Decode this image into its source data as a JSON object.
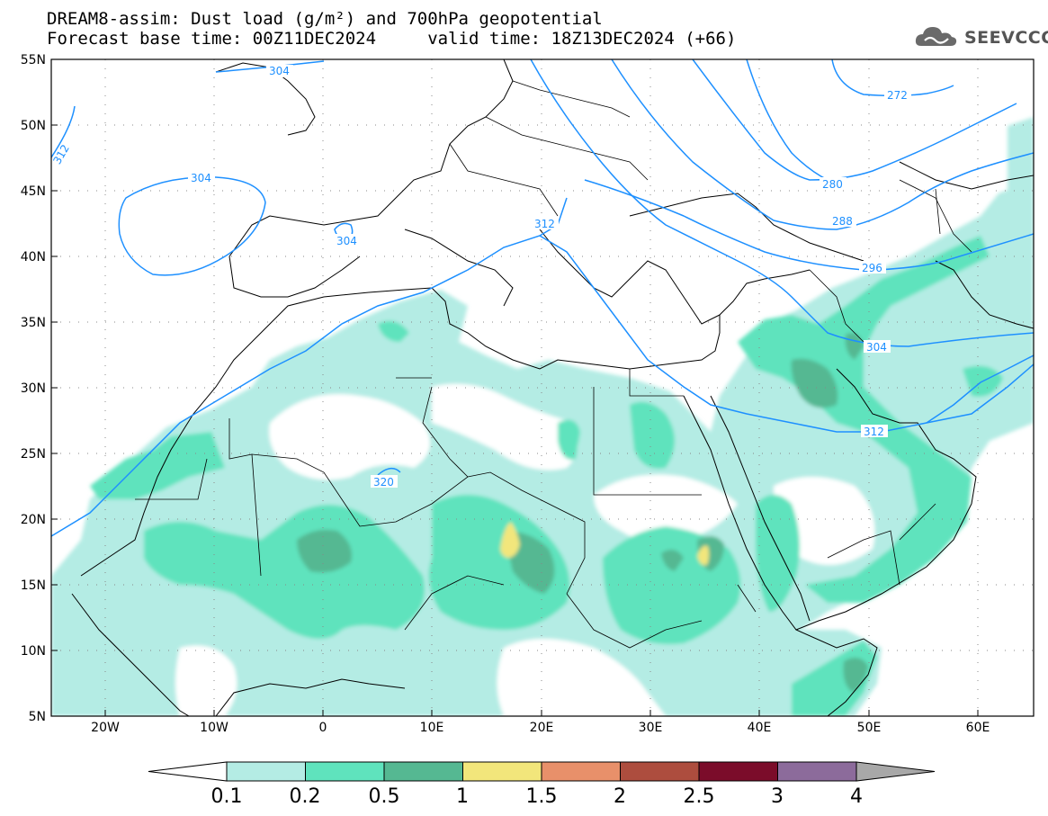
{
  "title": {
    "line1": "DREAM8-assim: Dust load (g/m²) and 700hPa geopotential",
    "line2": "Forecast base time: 00Z11DEC2024     valid time: 18Z13DEC2024 (+66)"
  },
  "logo": {
    "text": "SEEVCCC",
    "icon": "cloud-icon"
  },
  "map": {
    "lon_range": [
      -25,
      65
    ],
    "lat_range": [
      5,
      55
    ],
    "lon_ticks": [
      "20W",
      "10W",
      "0",
      "10E",
      "20E",
      "30E",
      "40E",
      "50E",
      "60E"
    ],
    "lat_ticks": [
      "55N",
      "50N",
      "45N",
      "40N",
      "35N",
      "30N",
      "25N",
      "20N",
      "15N",
      "10N",
      "5N"
    ],
    "grid": "dotted",
    "contour_color": "#1e90ff",
    "contour_labels": [
      "304",
      "312",
      "304",
      "304",
      "272",
      "280",
      "288",
      "296",
      "312",
      "304",
      "312",
      "320"
    ]
  },
  "colorbar": {
    "levels": [
      "0.1",
      "0.2",
      "0.5",
      "1",
      "1.5",
      "2",
      "2.5",
      "3",
      "4"
    ],
    "colors": [
      "#ffffff",
      "#b4ece4",
      "#5fe3bd",
      "#55b892",
      "#f2e67b",
      "#e8906a",
      "#ad4d3e",
      "#7b0c2a",
      "#8c6b9b",
      "#a8a8a8"
    ]
  }
}
